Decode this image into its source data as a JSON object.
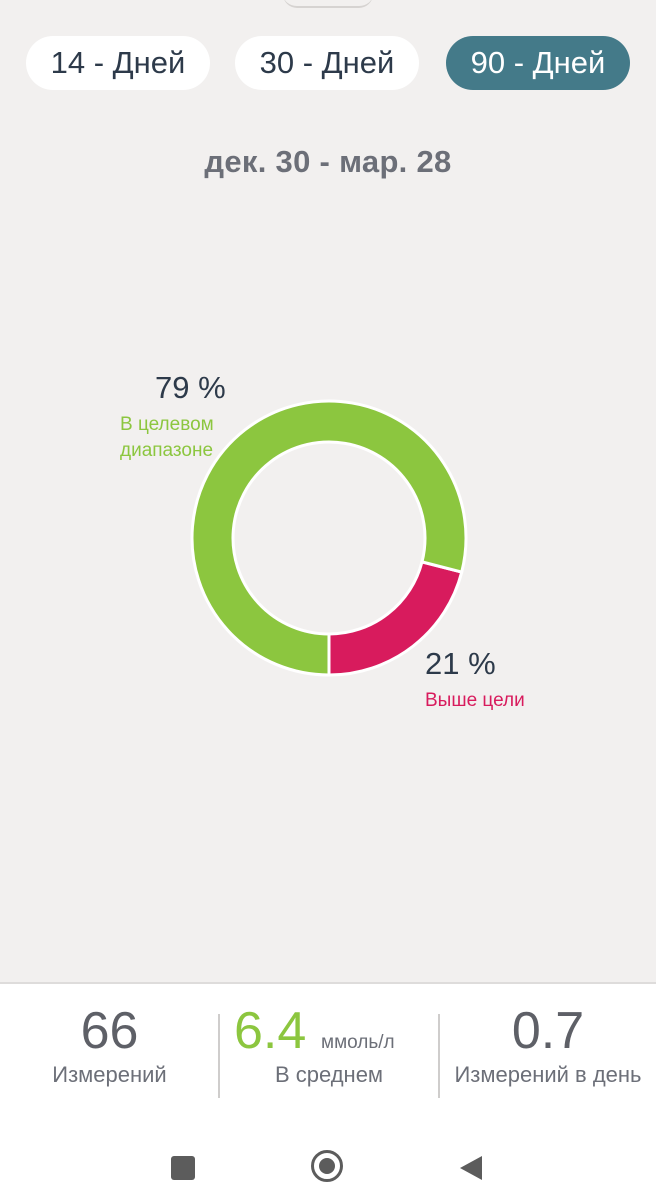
{
  "range_tabs": [
    {
      "label": "14 - Дней",
      "active": false
    },
    {
      "label": "30 - Дней",
      "active": false
    },
    {
      "label": "90 - Дней",
      "active": true
    }
  ],
  "date_range": "дек. 30 - мар. 28",
  "colors": {
    "in_range": "#8cc63f",
    "above": "#d81b5d",
    "active_tab": "#447a89"
  },
  "chart_data": {
    "type": "pie",
    "slices": [
      {
        "label": "В целевом диапазоне",
        "value": 79,
        "color": "#8cc63f"
      },
      {
        "label": "Выше цели",
        "value": 21,
        "color": "#d81b5d"
      }
    ]
  },
  "donut": {
    "in_range_pct": "79 %",
    "in_range_label_line1": "В целевом",
    "in_range_label_line2": "диапазоне",
    "above_pct": "21 %",
    "above_label": "Выше цели"
  },
  "stats": {
    "count_value": "66",
    "count_label": "Измерений",
    "avg_value": "6.4",
    "avg_unit": "ммоль/л",
    "avg_label": "В среднем",
    "per_day_value": "0.7",
    "per_day_label": "Измерений в день"
  },
  "nav": {
    "recent_icon": "square-icon",
    "home_icon": "circle-icon",
    "back_icon": "triangle-back-icon"
  }
}
